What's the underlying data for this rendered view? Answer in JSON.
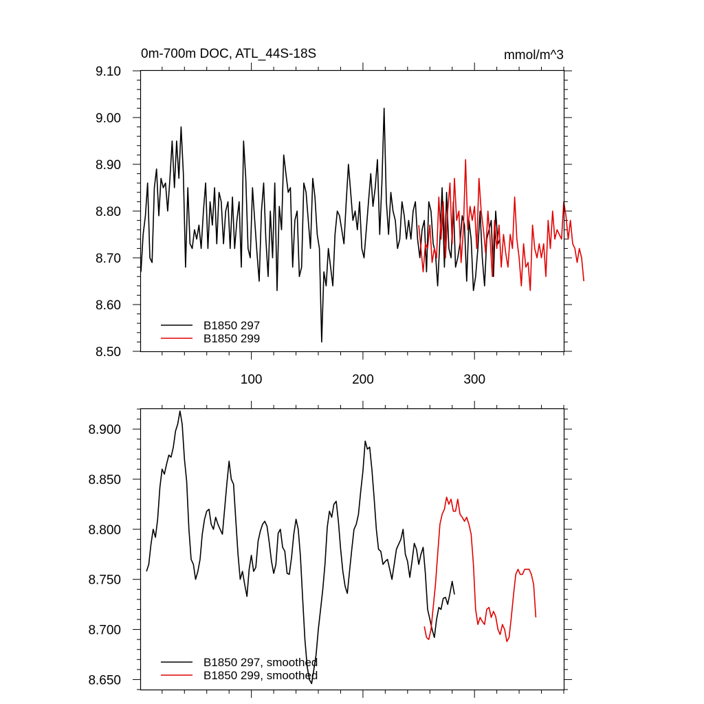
{
  "chart_data": [
    {
      "type": "line",
      "title": "0m-700m DOC, ATL_44S-18S",
      "units": "mmol/m^3",
      "xlim": [
        1,
        380
      ],
      "ylim": [
        8.5,
        9.1
      ],
      "xticks": [
        100,
        200,
        300
      ],
      "xtick_labels": [
        "100",
        "200",
        "300"
      ],
      "yticks": [
        8.5,
        8.6,
        8.7,
        8.8,
        8.9,
        9.0,
        9.1
      ],
      "ytick_labels": [
        "8.50",
        "8.60",
        "8.70",
        "8.80",
        "8.90",
        "9.00",
        "9.10"
      ],
      "legend_position": "bottom-left",
      "series": [
        {
          "name": "B1850 297",
          "color": "#000000",
          "x_start": 1,
          "x_step": 2,
          "values": [
            8.67,
            8.75,
            8.79,
            8.86,
            8.7,
            8.69,
            8.85,
            8.89,
            8.79,
            8.87,
            8.85,
            8.86,
            8.8,
            8.87,
            8.95,
            8.85,
            8.95,
            8.87,
            8.98,
            8.88,
            8.68,
            8.85,
            8.73,
            8.72,
            8.76,
            8.74,
            8.77,
            8.72,
            8.8,
            8.86,
            8.72,
            8.82,
            8.77,
            8.85,
            8.73,
            8.84,
            8.82,
            8.73,
            8.8,
            8.82,
            8.72,
            8.83,
            8.72,
            8.78,
            8.82,
            8.68,
            8.95,
            8.87,
            8.72,
            8.7,
            8.85,
            8.78,
            8.71,
            8.65,
            8.8,
            8.86,
            8.74,
            8.66,
            8.8,
            8.7,
            8.86,
            8.63,
            8.81,
            8.76,
            8.92,
            8.88,
            8.84,
            8.85,
            8.68,
            8.78,
            8.8,
            8.66,
            8.68,
            8.86,
            8.84,
            8.78,
            8.72,
            8.87,
            8.83,
            8.75,
            8.72,
            8.52,
            8.67,
            8.64,
            8.72,
            8.68,
            8.64,
            8.75,
            8.8,
            8.79,
            8.76,
            8.73,
            8.82,
            8.9,
            8.84,
            8.78,
            8.8,
            8.76,
            8.82,
            8.72,
            8.7,
            8.76,
            8.82,
            8.88,
            8.81,
            8.85,
            8.91,
            8.75,
            8.86,
            9.02,
            8.82,
            8.75,
            8.84,
            8.8,
            8.78,
            8.72,
            8.74,
            8.82,
            8.79,
            8.74,
            8.78,
            8.74,
            8.8,
            8.82,
            8.74,
            8.7,
            8.76,
            8.78,
            8.67,
            8.82,
            8.8,
            8.73,
            8.71,
            8.64,
            8.74,
            8.85,
            8.68,
            8.84,
            8.72,
            8.7,
            8.82,
            8.68,
            8.7,
            8.73,
            8.79,
            8.77,
            8.65,
            8.78,
            8.74,
            8.63,
            8.66,
            8.72,
            8.8,
            8.7,
            8.64,
            8.74,
            8.76,
            8.78,
            8.66,
            8.8,
            8.73,
            8.74
          ],
          "plot": 1
        },
        {
          "name": "B1850 299",
          "color": "#e00000",
          "x_start": 250,
          "x_step": 2,
          "values": [
            8.77,
            8.72,
            8.67,
            8.73,
            8.72,
            8.77,
            8.69,
            8.72,
            8.7,
            8.83,
            8.74,
            8.82,
            8.7,
            8.8,
            8.86,
            8.73,
            8.87,
            8.78,
            8.8,
            8.69,
            8.76,
            8.91,
            8.76,
            8.81,
            8.78,
            8.81,
            8.72,
            8.87,
            8.8,
            8.76,
            8.71,
            8.8,
            8.74,
            8.66,
            8.78,
            8.72,
            8.77,
            8.68,
            8.75,
            8.71,
            8.68,
            8.75,
            8.72,
            8.83,
            8.74,
            8.7,
            8.64,
            8.73,
            8.68,
            8.69,
            8.63,
            8.77,
            8.72,
            8.7,
            8.73,
            8.7,
            8.73,
            8.66,
            8.78,
            8.72,
            8.8,
            8.74,
            8.76,
            8.75,
            8.74,
            8.82,
            8.79,
            8.74,
            8.78,
            8.73,
            8.72,
            8.69,
            8.72,
            8.7,
            8.65
          ],
          "plot": 1
        }
      ]
    },
    {
      "type": "line",
      "title": "",
      "xlim": [
        1,
        380
      ],
      "ylim": [
        8.64,
        8.92
      ],
      "xticks": [
        100,
        200,
        300
      ],
      "yticks": [
        8.65,
        8.7,
        8.75,
        8.8,
        8.85,
        8.9
      ],
      "ytick_labels": [
        "8.650",
        "8.700",
        "8.750",
        "8.800",
        "8.850",
        "8.900"
      ],
      "legend_position": "bottom-left",
      "series": [
        {
          "name": "B1850 297, smoothed",
          "color": "#000000",
          "x_start": 6,
          "x_step": 2,
          "values": [
            8.758,
            8.765,
            8.785,
            8.8,
            8.792,
            8.81,
            8.842,
            8.86,
            8.855,
            8.865,
            8.874,
            8.872,
            8.882,
            8.898,
            8.905,
            8.918,
            8.905,
            8.87,
            8.848,
            8.8,
            8.77,
            8.765,
            8.75,
            8.758,
            8.77,
            8.795,
            8.81,
            8.818,
            8.82,
            8.805,
            8.8,
            8.812,
            8.805,
            8.8,
            8.795,
            8.82,
            8.845,
            8.868,
            8.85,
            8.845,
            8.81,
            8.775,
            8.75,
            8.758,
            8.745,
            8.733,
            8.76,
            8.774,
            8.758,
            8.762,
            8.788,
            8.798,
            8.805,
            8.808,
            8.803,
            8.787,
            8.768,
            8.756,
            8.765,
            8.796,
            8.8,
            8.782,
            8.778,
            8.756,
            8.755,
            8.772,
            8.795,
            8.81,
            8.8,
            8.773,
            8.73,
            8.69,
            8.663,
            8.65,
            8.646,
            8.66,
            8.675,
            8.7,
            8.72,
            8.74,
            8.765,
            8.802,
            8.818,
            8.812,
            8.825,
            8.828,
            8.808,
            8.78,
            8.758,
            8.743,
            8.736,
            8.758,
            8.78,
            8.8,
            8.805,
            8.815,
            8.838,
            8.858,
            8.888,
            8.88,
            8.882,
            8.86,
            8.832,
            8.8,
            8.78,
            8.778,
            8.765,
            8.768,
            8.77,
            8.76,
            8.75,
            8.765,
            8.78,
            8.785,
            8.79,
            8.8,
            8.775,
            8.768,
            8.752,
            8.768,
            8.786,
            8.78,
            8.765,
            8.775,
            8.782,
            8.755,
            8.72,
            8.71,
            8.7,
            8.692,
            8.71,
            8.722,
            8.72,
            8.731,
            8.732,
            8.725,
            8.736,
            8.748,
            8.735
          ],
          "plot": 2
        },
        {
          "name": "B1850 299, smoothed",
          "color": "#e00000",
          "x_start": 255,
          "x_step": 2,
          "values": [
            8.703,
            8.692,
            8.69,
            8.7,
            8.722,
            8.745,
            8.775,
            8.805,
            8.815,
            8.82,
            8.832,
            8.825,
            8.83,
            8.818,
            8.818,
            8.83,
            8.815,
            8.812,
            8.808,
            8.812,
            8.805,
            8.795,
            8.765,
            8.72,
            8.705,
            8.712,
            8.708,
            8.705,
            8.72,
            8.722,
            8.712,
            8.718,
            8.713,
            8.7,
            8.695,
            8.705,
            8.7,
            8.688,
            8.692,
            8.712,
            8.735,
            8.755,
            8.76,
            8.755,
            8.755,
            8.76,
            8.76,
            8.76,
            8.755,
            8.745,
            8.712
          ],
          "plot": 2
        }
      ]
    }
  ]
}
